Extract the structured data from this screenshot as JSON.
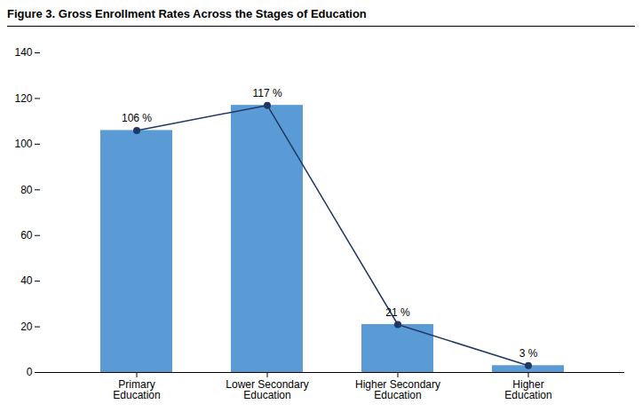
{
  "chart_data": {
    "type": "bar",
    "title": "Figure 3. Gross Enrollment Rates Across the Stages of Education",
    "categories": [
      "Primary\nEducation",
      "Lower Secondary\nEducation",
      "Higher Secondary\nEducation",
      "Higher\nEducation"
    ],
    "series": [
      {
        "type": "bar",
        "color": "#5B9BD5",
        "values": [
          106,
          117,
          21,
          3
        ],
        "value_labels": [
          "106 %",
          "117 %",
          "21 %",
          "3 %"
        ],
        "data_labels": true
      },
      {
        "type": "line",
        "color": "#1F3864",
        "marker": "circle",
        "values": [
          106,
          117,
          21,
          3
        ]
      }
    ],
    "ylim": [
      0,
      140
    ],
    "yticks": [
      0,
      20,
      40,
      60,
      80,
      100,
      120,
      140
    ],
    "grid": false
  }
}
